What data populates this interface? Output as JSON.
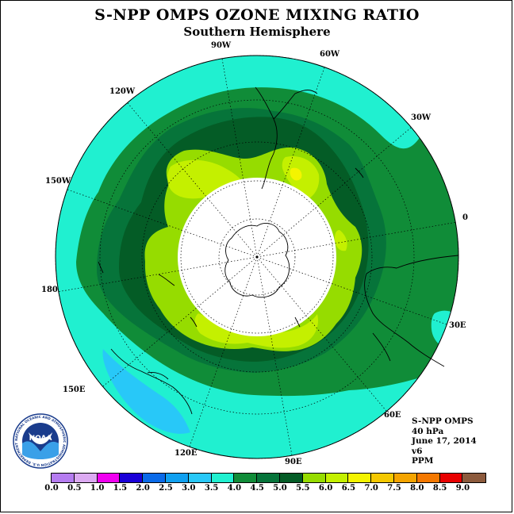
{
  "title": "S-NPP OMPS OZONE MIXING RATIO",
  "subtitle": "Southern Hemisphere",
  "longitude_labels": [
    "90W",
    "60W",
    "30W",
    "0",
    "30E",
    "60E",
    "90E",
    "120E",
    "150E",
    "180",
    "150W",
    "120W"
  ],
  "info": {
    "instrument": "S-NPP OMPS",
    "level": "40 hPa",
    "date": "June 17, 2014",
    "version": "v6",
    "units": "PPM"
  },
  "logo": {
    "text": "NOAA",
    "ring_text": "NATIONAL OCEANIC AND ATMOSPHERIC ADMINISTRATION U.S. DEPARTMENT OF COMMERCE"
  },
  "colorbar": {
    "ticks": [
      "0.0",
      "0.5",
      "1.0",
      "1.5",
      "2.0",
      "2.5",
      "3.0",
      "3.5",
      "4.0",
      "4.5",
      "5.0",
      "5.5",
      "6.0",
      "6.5",
      "7.0",
      "7.5",
      "8.0",
      "8.5",
      "9.0"
    ],
    "colors": [
      "#b57cf0",
      "#dcaaf2",
      "#f000f0",
      "#1a00d8",
      "#0a6ae8",
      "#10a0f0",
      "#28c8f8",
      "#20f0d0",
      "#108c38",
      "#06743a",
      "#045c26",
      "#96dc00",
      "#c4f000",
      "#f4f400",
      "#f4c800",
      "#f4a400",
      "#f47800",
      "#e80000",
      "#8c5a3c"
    ]
  }
}
